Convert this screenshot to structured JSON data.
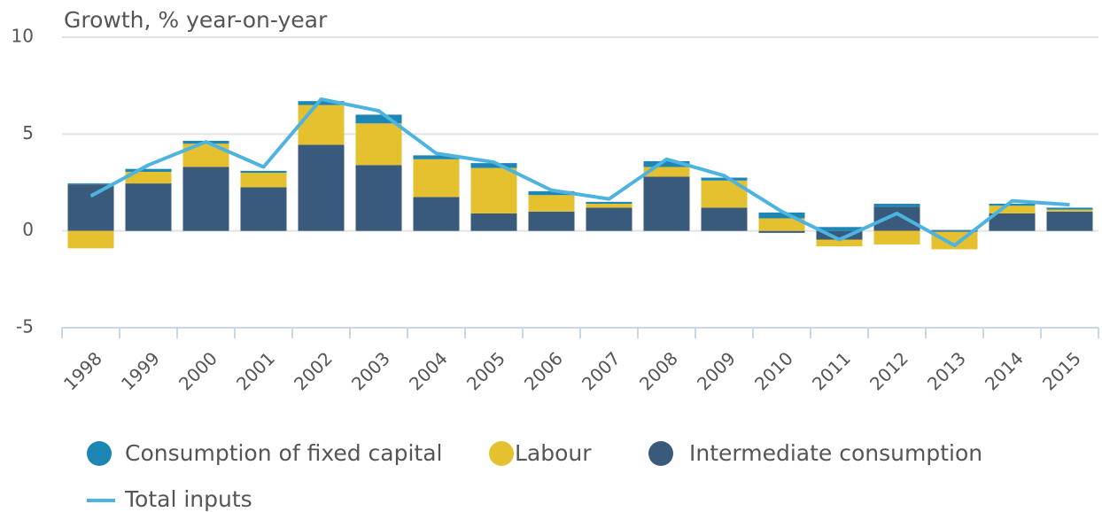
{
  "chart_data": {
    "type": "bar",
    "stacked": true,
    "y_label": "Growth, % year-on-year",
    "categories": [
      "1998",
      "1999",
      "2000",
      "2001",
      "2002",
      "2003",
      "2004",
      "2005",
      "2006",
      "2007",
      "2008",
      "2009",
      "2010",
      "2011",
      "2012",
      "2013",
      "2014",
      "2015"
    ],
    "series": [
      {
        "name": "Consumption of fixed capital",
        "color": "#1d86b4",
        "type": "bar",
        "values": [
          0.05,
          0.15,
          0.15,
          0.1,
          0.2,
          0.45,
          0.2,
          0.25,
          0.2,
          0.1,
          0.3,
          0.15,
          0.3,
          0.2,
          0.15,
          0.05,
          0.1,
          0.1
        ]
      },
      {
        "name": "Labour",
        "color": "#e5c130",
        "type": "bar",
        "values": [
          -0.9,
          0.6,
          1.2,
          0.75,
          2.05,
          2.15,
          1.95,
          2.35,
          0.85,
          0.2,
          0.5,
          1.4,
          0.65,
          -0.35,
          -0.7,
          -0.9,
          0.4,
          0.1
        ]
      },
      {
        "name": "Intermediate consumption",
        "color": "#3a5a7b",
        "type": "bar",
        "values": [
          2.4,
          2.45,
          3.3,
          2.25,
          4.45,
          3.4,
          1.75,
          0.9,
          1.0,
          1.2,
          2.8,
          1.2,
          -0.1,
          -0.45,
          1.25,
          -0.05,
          0.9,
          1.0
        ]
      },
      {
        "name": "Total inputs",
        "color": "#4db3e0",
        "type": "line",
        "values": [
          1.8,
          3.4,
          4.6,
          3.3,
          6.8,
          6.2,
          4.0,
          3.55,
          2.1,
          1.65,
          3.7,
          2.85,
          1.0,
          -0.45,
          0.9,
          -0.75,
          1.55,
          1.35
        ]
      }
    ],
    "ylim": [
      -5,
      10
    ],
    "yticks": [
      -5,
      0,
      5,
      10
    ],
    "grid": true,
    "legend": "bottom"
  }
}
